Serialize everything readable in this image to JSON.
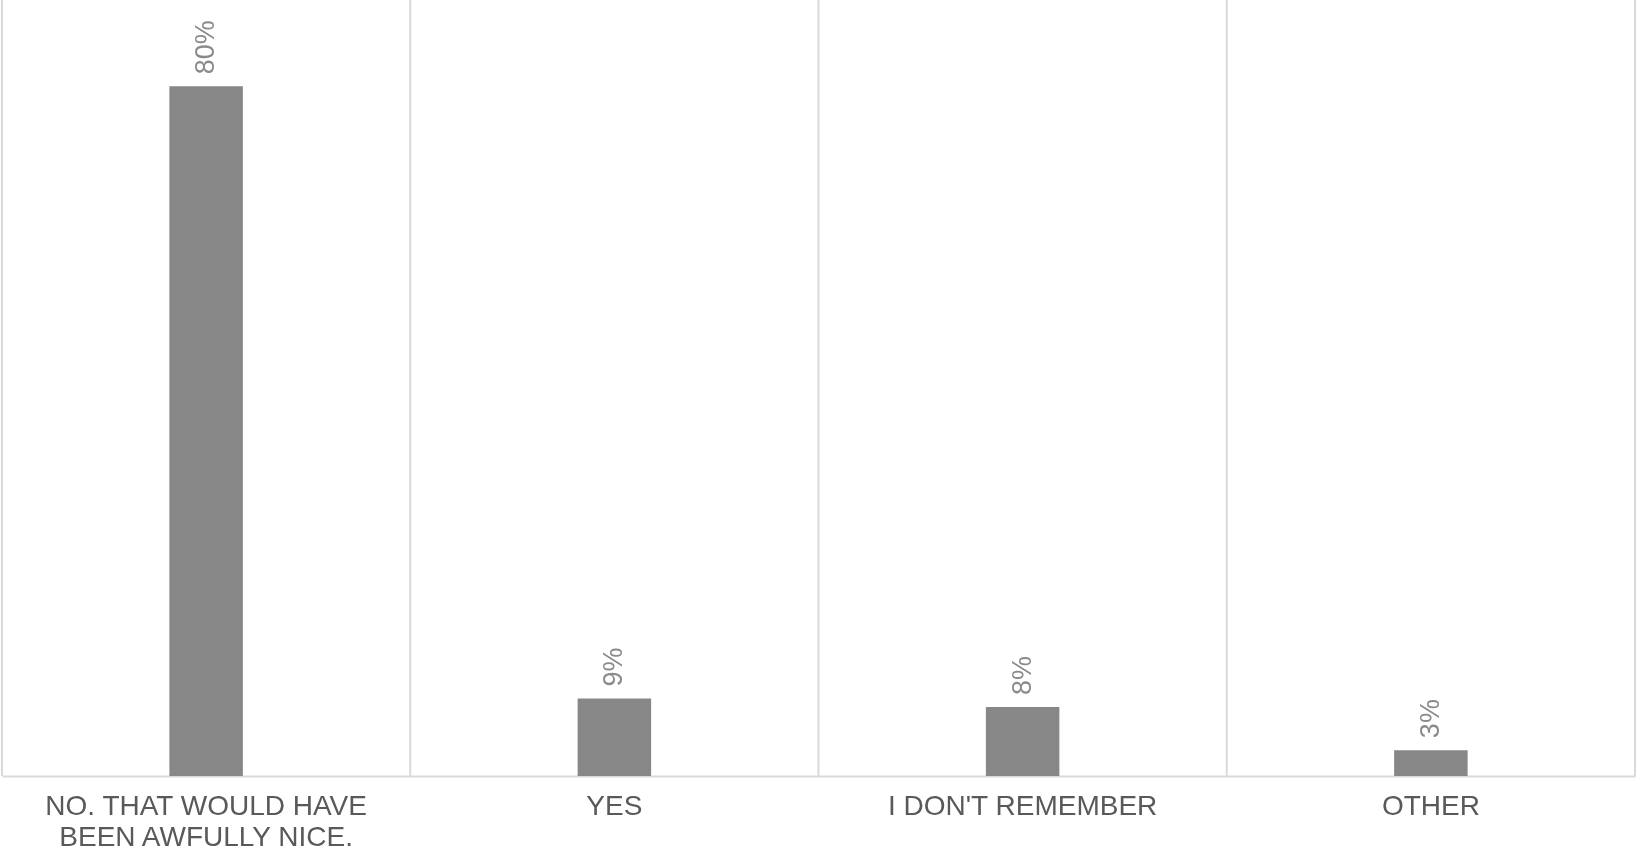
{
  "chart_data": {
    "type": "bar",
    "categories": [
      "NO. THAT WOULD HAVE\nBEEN AWFULLY NICE.",
      "YES",
      "I DON'T REMEMBER",
      "OTHER"
    ],
    "values": [
      80,
      9,
      8,
      3
    ],
    "value_labels": [
      "80%",
      "9%",
      "8%",
      "3%"
    ],
    "color": "#878787",
    "ylim": [
      0,
      90
    ],
    "grid": "x",
    "tick_labels": "x"
  }
}
